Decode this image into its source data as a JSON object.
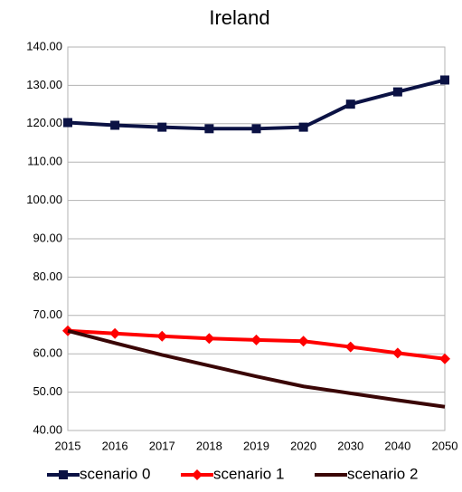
{
  "chart_data": {
    "type": "line",
    "title": "Ireland",
    "categories": [
      "2015",
      "2016",
      "2017",
      "2018",
      "2019",
      "2020",
      "2030",
      "2040",
      "2050"
    ],
    "series": [
      {
        "name": "scenario 0",
        "color": "#0b1244",
        "marker": "square",
        "values": [
          120.3,
          119.6,
          119.1,
          118.7,
          118.7,
          119.1,
          125.1,
          128.3,
          131.4
        ]
      },
      {
        "name": "scenario 1",
        "color": "#ff0000",
        "marker": "diamond",
        "values": [
          66.0,
          65.3,
          64.6,
          64.0,
          63.6,
          63.3,
          61.8,
          60.2,
          58.7
        ]
      },
      {
        "name": "scenario 2",
        "color": "#3a0606",
        "marker": "none",
        "values": [
          66.0,
          62.8,
          59.7,
          56.9,
          54.1,
          51.5,
          49.7,
          47.9,
          46.2
        ]
      }
    ],
    "ylim": [
      40,
      140
    ],
    "yticks": [
      {
        "value": 40,
        "label": "40.00"
      },
      {
        "value": 50,
        "label": "50.00"
      },
      {
        "value": 60,
        "label": "60.00"
      },
      {
        "value": 70,
        "label": "70.00"
      },
      {
        "value": 80,
        "label": "80.00"
      },
      {
        "value": 90,
        "label": "90.00"
      },
      {
        "value": 100,
        "label": "100.00"
      },
      {
        "value": 110,
        "label": "110.00"
      },
      {
        "value": 120,
        "label": "120.00"
      },
      {
        "value": 130,
        "label": "130.00"
      },
      {
        "value": 140,
        "label": "140.00"
      }
    ],
    "grid": true,
    "legend": "bottom"
  }
}
